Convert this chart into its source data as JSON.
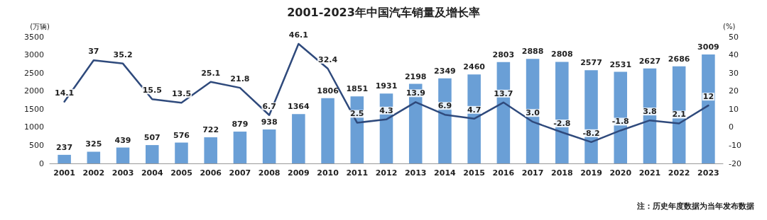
{
  "chart_data": {
    "type": "bar",
    "title": "2001-2023年中国汽车销量及增长率",
    "ylabel": "(万辆)",
    "y2label": "(%)",
    "categories": [
      "2001",
      "2002",
      "2003",
      "2004",
      "2005",
      "2006",
      "2007",
      "2008",
      "2009",
      "2010",
      "2011",
      "2012",
      "2013",
      "2014",
      "2015",
      "2016",
      "2017",
      "2018",
      "2019",
      "2020",
      "2021",
      "2022",
      "2023"
    ],
    "series": [
      {
        "color": "#6a9fd6",
        "values": [
          237,
          325,
          439,
          507,
          576,
          722,
          879,
          938,
          1364,
          1806,
          1851,
          1931,
          2198,
          2349,
          2460,
          2803,
          2888,
          2808,
          2577,
          2531,
          2627,
          2686,
          3009
        ],
        "value_labels": [
          "237",
          "325",
          "439",
          "507",
          "576",
          "722",
          "879",
          "938",
          "1364",
          "1806",
          "1851",
          "1931",
          "2198",
          "2349",
          "2460",
          "2803",
          "2888",
          "2808",
          "2577",
          "2531",
          "2627",
          "2686",
          "3009"
        ]
      },
      {
        "type": "line",
        "axis": "y2",
        "color": "#2f4a7c",
        "marker": "none",
        "line_style": "solid",
        "values": [
          14.1,
          37,
          35.2,
          15.5,
          13.5,
          25.1,
          21.8,
          6.7,
          46.1,
          32.4,
          2.5,
          4.3,
          13.9,
          6.9,
          4.7,
          13.7,
          3.0,
          -2.8,
          -8.2,
          -1.8,
          3.8,
          2.1,
          12
        ],
        "value_labels": [
          "14.1",
          "37",
          "35.2",
          "15.5",
          "13.5",
          "25.1",
          "21.8",
          "6.7",
          "46.1",
          "32.4",
          "2.5",
          "4.3",
          "13.9",
          "6.9",
          "4.7",
          "13.7",
          "3.0",
          "-2.8",
          "-8.2",
          "-1.8",
          "3.8",
          "2.1",
          "12"
        ]
      }
    ],
    "ylim": [
      0,
      3500
    ],
    "yticks": [
      0,
      500,
      1000,
      1500,
      2000,
      2500,
      3000,
      3500
    ],
    "y2lim": [
      -20,
      50
    ],
    "y2ticks": [
      -20,
      -10,
      0,
      10,
      20,
      30,
      40,
      50
    ],
    "grid": false,
    "annotations": [
      "注：历史年度数据为当年发布数据"
    ]
  }
}
